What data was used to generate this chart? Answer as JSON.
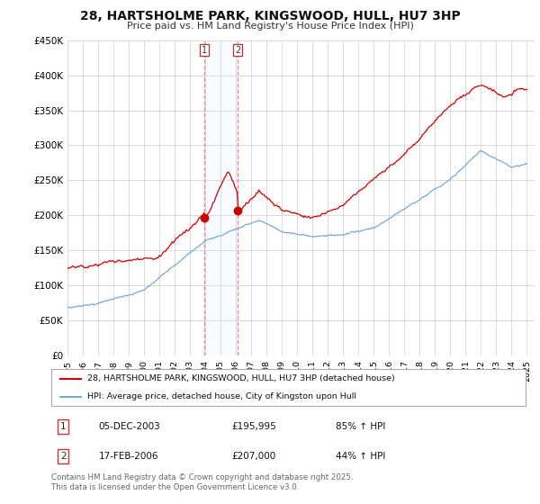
{
  "title": "28, HARTSHOLME PARK, KINGSWOOD, HULL, HU7 3HP",
  "subtitle": "Price paid vs. HM Land Registry's House Price Index (HPI)",
  "ylim": [
    0,
    450000
  ],
  "yticks": [
    0,
    50000,
    100000,
    150000,
    200000,
    250000,
    300000,
    350000,
    400000,
    450000
  ],
  "ytick_labels": [
    "£0",
    "£50K",
    "£100K",
    "£150K",
    "£200K",
    "£250K",
    "£300K",
    "£350K",
    "£400K",
    "£450K"
  ],
  "background_color": "#ffffff",
  "grid_color": "#cccccc",
  "legend_label_red": "28, HARTSHOLME PARK, KINGSWOOD, HULL, HU7 3HP (detached house)",
  "legend_label_blue": "HPI: Average price, detached house, City of Kingston upon Hull",
  "transaction1_date": "05-DEC-2003",
  "transaction1_price": 195995,
  "transaction1_hpi": "85% ↑ HPI",
  "transaction1_year": 2003.92,
  "transaction2_date": "17-FEB-2006",
  "transaction2_price": 207000,
  "transaction2_hpi": "44% ↑ HPI",
  "transaction2_year": 2006.12,
  "footer_text": "Contains HM Land Registry data © Crown copyright and database right 2025.\nThis data is licensed under the Open Government Licence v3.0.",
  "red_color": "#cc0000",
  "blue_color": "#7aaacc",
  "vline_color": "#ee8888",
  "shade_color": "#ddeeff"
}
